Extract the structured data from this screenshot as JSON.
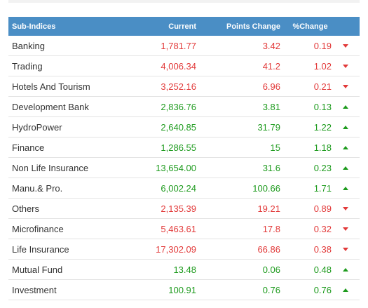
{
  "headers": {
    "name": "Sub-Indices",
    "current": "Current",
    "points_change": "Points Change",
    "pct_change": "%Change"
  },
  "colors": {
    "header_bg": "#4a8ec5",
    "up": "#1e9b1e",
    "down": "#e23a3a"
  },
  "rows": [
    {
      "name": "Banking",
      "current": "1,781.77",
      "points": "3.42",
      "pct": "0.19",
      "trend": "down",
      "icon": "triangle-down-icon"
    },
    {
      "name": "Trading",
      "current": "4,006.34",
      "points": "41.2",
      "pct": "1.02",
      "trend": "down",
      "icon": "triangle-down-icon"
    },
    {
      "name": "Hotels And Tourism",
      "current": "3,252.16",
      "points": "6.96",
      "pct": "0.21",
      "trend": "down",
      "icon": "triangle-down-icon"
    },
    {
      "name": "Development Bank",
      "current": "2,836.76",
      "points": "3.81",
      "pct": "0.13",
      "trend": "up",
      "icon": "triangle-up-icon"
    },
    {
      "name": "HydroPower",
      "current": "2,640.85",
      "points": "31.79",
      "pct": "1.22",
      "trend": "up",
      "icon": "triangle-up-icon"
    },
    {
      "name": "Finance",
      "current": "1,286.55",
      "points": "15",
      "pct": "1.18",
      "trend": "up",
      "icon": "triangle-up-icon"
    },
    {
      "name": "Non Life Insurance",
      "current": "13,654.00",
      "points": "31.6",
      "pct": "0.23",
      "trend": "up",
      "icon": "triangle-up-icon"
    },
    {
      "name": "Manu.& Pro.",
      "current": "6,002.24",
      "points": "100.66",
      "pct": "1.71",
      "trend": "up",
      "icon": "triangle-up-icon"
    },
    {
      "name": "Others",
      "current": "2,135.39",
      "points": "19.21",
      "pct": "0.89",
      "trend": "down",
      "icon": "triangle-down-icon"
    },
    {
      "name": "Microfinance",
      "current": "5,463.61",
      "points": "17.8",
      "pct": "0.32",
      "trend": "down",
      "icon": "triangle-down-icon"
    },
    {
      "name": "Life Insurance",
      "current": "17,302.09",
      "points": "66.86",
      "pct": "0.38",
      "trend": "down",
      "icon": "triangle-down-icon"
    },
    {
      "name": "Mutual Fund",
      "current": "13.48",
      "points": "0.06",
      "pct": "0.48",
      "trend": "up",
      "icon": "triangle-up-icon"
    },
    {
      "name": "Investment",
      "current": "100.91",
      "points": "0.76",
      "pct": "0.76",
      "trend": "up",
      "icon": "triangle-up-icon"
    }
  ]
}
